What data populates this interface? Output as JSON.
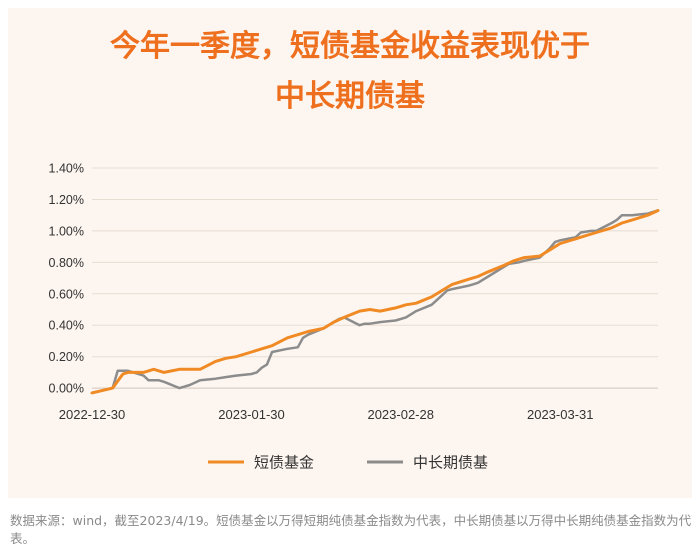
{
  "title_lines": [
    "今年一季度，短债基金收益表现优于",
    "中长期债基"
  ],
  "footnote": "数据来源：wind，截至2023/4/19。短债基金以万得短期纯债基金指数为代表，中长期债基以万得中长期纯债基金指数为代表。",
  "colors": {
    "title": "#ee6f1e",
    "short": "#f08a24",
    "long": "#8c8c8c",
    "card": "#fdf6f0"
  },
  "chart_data": {
    "type": "line",
    "title": "今年一季度，短债基金收益表现优于中长期债基",
    "xlabel": "",
    "ylabel": "",
    "x_tick_labels": [
      "2022-12-30",
      "2023-01-30",
      "2023-02-28",
      "2023-03-31"
    ],
    "x_tick_dates": [
      "2022-12-30",
      "2023-01-30",
      "2023-02-28",
      "2023-03-31"
    ],
    "x_range": [
      "2022-12-30",
      "2023-04-19"
    ],
    "y_tick_labels": [
      "0.00%",
      "0.20%",
      "0.40%",
      "0.60%",
      "0.80%",
      "1.00%",
      "1.20%",
      "1.40%"
    ],
    "ylim": [
      -0.0005,
      0.014
    ],
    "grid": "horizontal",
    "legend_position": "bottom",
    "series": [
      {
        "name": "短债基金",
        "color": "#f08a24",
        "points": [
          [
            "2022-12-30",
            -0.0003
          ],
          [
            "2023-01-03",
            0.0
          ],
          [
            "2023-01-05",
            0.0009
          ],
          [
            "2023-01-06",
            0.001
          ],
          [
            "2023-01-09",
            0.001
          ],
          [
            "2023-01-11",
            0.0012
          ],
          [
            "2023-01-13",
            0.001
          ],
          [
            "2023-01-16",
            0.0012
          ],
          [
            "2023-01-18",
            0.0012
          ],
          [
            "2023-01-20",
            0.0012
          ],
          [
            "2023-01-23",
            0.0017
          ],
          [
            "2023-01-25",
            0.0019
          ],
          [
            "2023-01-27",
            0.002
          ],
          [
            "2023-01-30",
            0.0023
          ],
          [
            "2023-02-01",
            0.0025
          ],
          [
            "2023-02-03",
            0.0027
          ],
          [
            "2023-02-06",
            0.0032
          ],
          [
            "2023-02-08",
            0.0034
          ],
          [
            "2023-02-10",
            0.0036
          ],
          [
            "2023-02-13",
            0.0038
          ],
          [
            "2023-02-15",
            0.0042
          ],
          [
            "2023-02-17",
            0.0045
          ],
          [
            "2023-02-20",
            0.0049
          ],
          [
            "2023-02-22",
            0.005
          ],
          [
            "2023-02-24",
            0.0049
          ],
          [
            "2023-02-27",
            0.0051
          ],
          [
            "2023-03-01",
            0.0053
          ],
          [
            "2023-03-03",
            0.0054
          ],
          [
            "2023-03-06",
            0.0058
          ],
          [
            "2023-03-08",
            0.0062
          ],
          [
            "2023-03-10",
            0.0066
          ],
          [
            "2023-03-13",
            0.0069
          ],
          [
            "2023-03-15",
            0.0071
          ],
          [
            "2023-03-17",
            0.0074
          ],
          [
            "2023-03-20",
            0.0078
          ],
          [
            "2023-03-22",
            0.0081
          ],
          [
            "2023-03-24",
            0.0083
          ],
          [
            "2023-03-27",
            0.0084
          ],
          [
            "2023-03-29",
            0.0088
          ],
          [
            "2023-03-31",
            0.0092
          ],
          [
            "2023-04-03",
            0.0095
          ],
          [
            "2023-04-05",
            0.0097
          ],
          [
            "2023-04-07",
            0.0099
          ],
          [
            "2023-04-10",
            0.0102
          ],
          [
            "2023-04-12",
            0.0105
          ],
          [
            "2023-04-14",
            0.0107
          ],
          [
            "2023-04-17",
            0.011
          ],
          [
            "2023-04-19",
            0.0113
          ]
        ]
      },
      {
        "name": "中长期债基",
        "color": "#8c8c8c",
        "points": [
          [
            "2022-12-30",
            -0.0003
          ],
          [
            "2023-01-03",
            0.0
          ],
          [
            "2023-01-04",
            0.0011
          ],
          [
            "2023-01-05",
            0.0011
          ],
          [
            "2023-01-06",
            0.0011
          ],
          [
            "2023-01-09",
            0.0008
          ],
          [
            "2023-01-10",
            0.0005
          ],
          [
            "2023-01-12",
            0.0005
          ],
          [
            "2023-01-13",
            0.0004
          ],
          [
            "2023-01-16",
            0.0
          ],
          [
            "2023-01-17",
            0.0001
          ],
          [
            "2023-01-18",
            0.0002
          ],
          [
            "2023-01-20",
            0.0005
          ],
          [
            "2023-01-23",
            0.0006
          ],
          [
            "2023-01-25",
            0.0007
          ],
          [
            "2023-01-27",
            0.0008
          ],
          [
            "2023-01-30",
            0.0009
          ],
          [
            "2023-01-31",
            0.001
          ],
          [
            "2023-02-01",
            0.0013
          ],
          [
            "2023-02-02",
            0.0015
          ],
          [
            "2023-02-03",
            0.0023
          ],
          [
            "2023-02-06",
            0.0025
          ],
          [
            "2023-02-08",
            0.0026
          ],
          [
            "2023-02-09",
            0.0032
          ],
          [
            "2023-02-10",
            0.0034
          ],
          [
            "2023-02-13",
            0.0038
          ],
          [
            "2023-02-14",
            0.004
          ],
          [
            "2023-02-16",
            0.0044
          ],
          [
            "2023-02-17",
            0.0045
          ],
          [
            "2023-02-20",
            0.004
          ],
          [
            "2023-02-21",
            0.0041
          ],
          [
            "2023-02-22",
            0.0041
          ],
          [
            "2023-02-24",
            0.0042
          ],
          [
            "2023-02-27",
            0.0043
          ],
          [
            "2023-03-01",
            0.0045
          ],
          [
            "2023-03-03",
            0.0049
          ],
          [
            "2023-03-06",
            0.0053
          ],
          [
            "2023-03-08",
            0.0059
          ],
          [
            "2023-03-09",
            0.0062
          ],
          [
            "2023-03-10",
            0.0063
          ],
          [
            "2023-03-13",
            0.0065
          ],
          [
            "2023-03-14",
            0.0066
          ],
          [
            "2023-03-15",
            0.0067
          ],
          [
            "2023-03-17",
            0.0071
          ],
          [
            "2023-03-20",
            0.0077
          ],
          [
            "2023-03-21",
            0.0079
          ],
          [
            "2023-03-23",
            0.008
          ],
          [
            "2023-03-24",
            0.0081
          ],
          [
            "2023-03-27",
            0.0083
          ],
          [
            "2023-03-29",
            0.0089
          ],
          [
            "2023-03-30",
            0.0093
          ],
          [
            "2023-03-31",
            0.0094
          ],
          [
            "2023-04-03",
            0.0096
          ],
          [
            "2023-04-04",
            0.0099
          ],
          [
            "2023-04-06",
            0.01
          ],
          [
            "2023-04-07",
            0.01
          ],
          [
            "2023-04-10",
            0.0105
          ],
          [
            "2023-04-11",
            0.0107
          ],
          [
            "2023-04-12",
            0.011
          ],
          [
            "2023-04-14",
            0.011
          ],
          [
            "2023-04-17",
            0.0111
          ],
          [
            "2023-04-19",
            0.0113
          ]
        ]
      }
    ]
  }
}
